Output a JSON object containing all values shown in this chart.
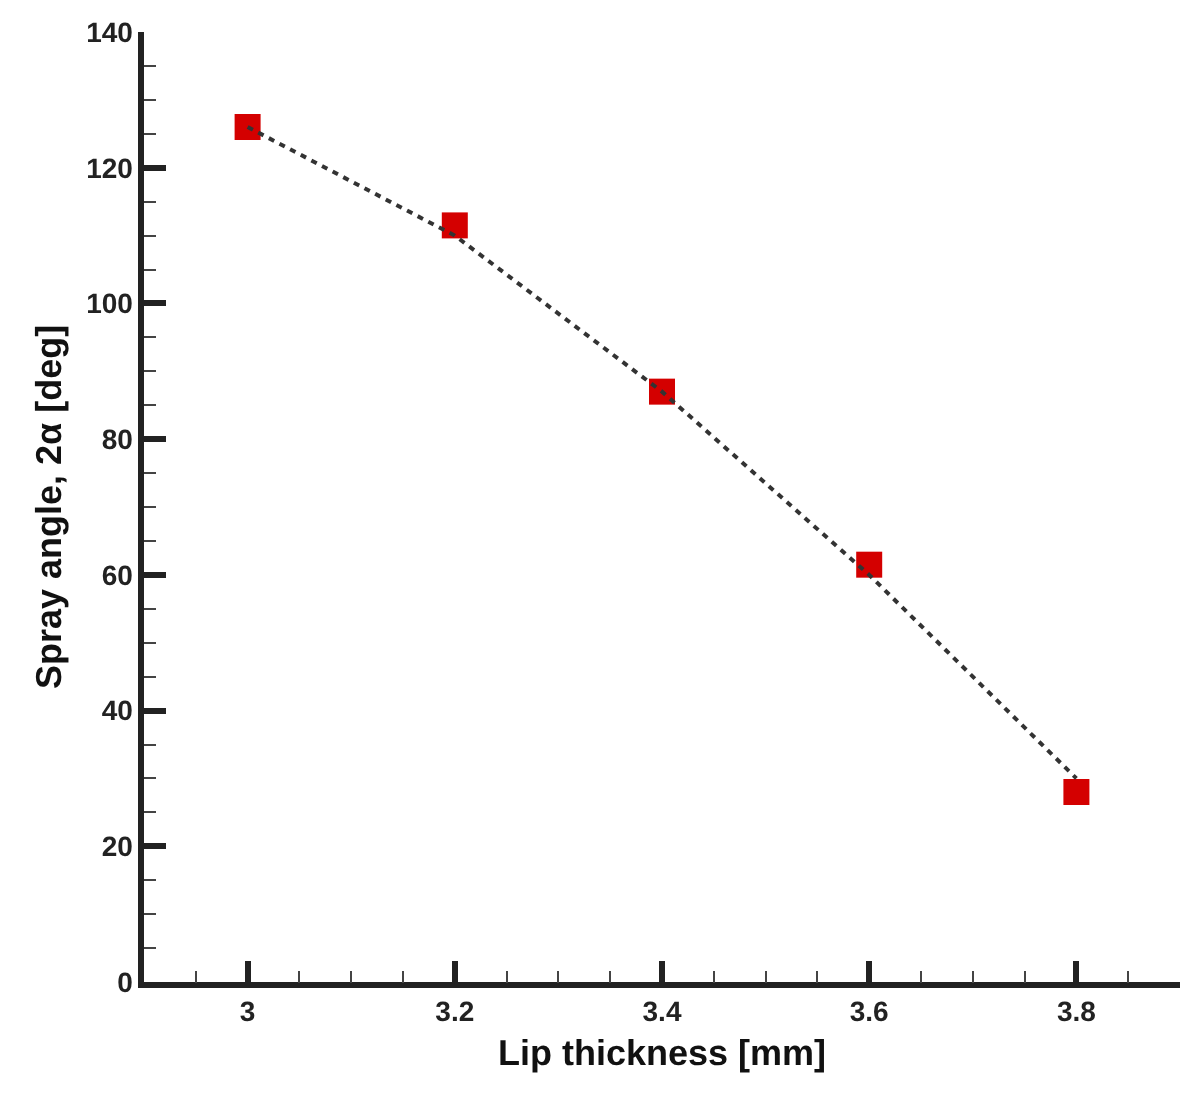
{
  "chart_data": {
    "type": "scatter",
    "xlabel": "Lip thickness [mm]",
    "ylabel": "Spray angle, 2α [deg]",
    "x": [
      3,
      3.2,
      3.4,
      3.6,
      3.8
    ],
    "series": [
      {
        "color": "#d40000",
        "marker": "square",
        "values": [
          126,
          111.5,
          87,
          61.5,
          28
        ]
      },
      {
        "type": "line",
        "color": "#333333",
        "line_style": "dotted",
        "marker": "none",
        "x": [
          3,
          3.2,
          3.4,
          3.6,
          3.8
        ],
        "values": [
          126,
          110,
          87,
          60,
          30
        ]
      }
    ],
    "xlim": [
      2.9,
      3.9
    ],
    "xticks": [
      {
        "value": 2.95,
        "label": null
      },
      3,
      {
        "value": 3.05,
        "label": null
      },
      {
        "value": 3.1,
        "label": null
      },
      {
        "value": 3.15,
        "label": null
      },
      3.2,
      {
        "value": 3.25,
        "label": null
      },
      {
        "value": 3.3,
        "label": null
      },
      {
        "value": 3.35,
        "label": null
      },
      3.4,
      {
        "value": 3.45,
        "label": null
      },
      {
        "value": 3.5,
        "label": null
      },
      {
        "value": 3.55,
        "label": null
      },
      3.6,
      {
        "value": 3.65,
        "label": null
      },
      {
        "value": 3.7,
        "label": null
      },
      {
        "value": 3.75,
        "label": null
      },
      3.8,
      {
        "value": 3.85,
        "label": null
      }
    ],
    "ylim": [
      0,
      140
    ],
    "yticks": [
      0,
      {
        "value": 5,
        "label": null
      },
      {
        "value": 10,
        "label": null
      },
      {
        "value": 15,
        "label": null
      },
      20,
      {
        "value": 25,
        "label": null
      },
      {
        "value": 30,
        "label": null
      },
      {
        "value": 35,
        "label": null
      },
      40,
      {
        "value": 45,
        "label": null
      },
      {
        "value": 50,
        "label": null
      },
      {
        "value": 55,
        "label": null
      },
      60,
      {
        "value": 65,
        "label": null
      },
      {
        "value": 70,
        "label": null
      },
      {
        "value": 75,
        "label": null
      },
      80,
      {
        "value": 85,
        "label": null
      },
      {
        "value": 90,
        "label": null
      },
      {
        "value": 95,
        "label": null
      },
      100,
      {
        "value": 105,
        "label": null
      },
      {
        "value": 110,
        "label": null
      },
      {
        "value": 115,
        "label": null
      },
      120,
      {
        "value": 125,
        "label": null
      },
      {
        "value": 130,
        "label": null
      },
      {
        "value": 135,
        "label": null
      },
      140
    ],
    "grid": false
  }
}
